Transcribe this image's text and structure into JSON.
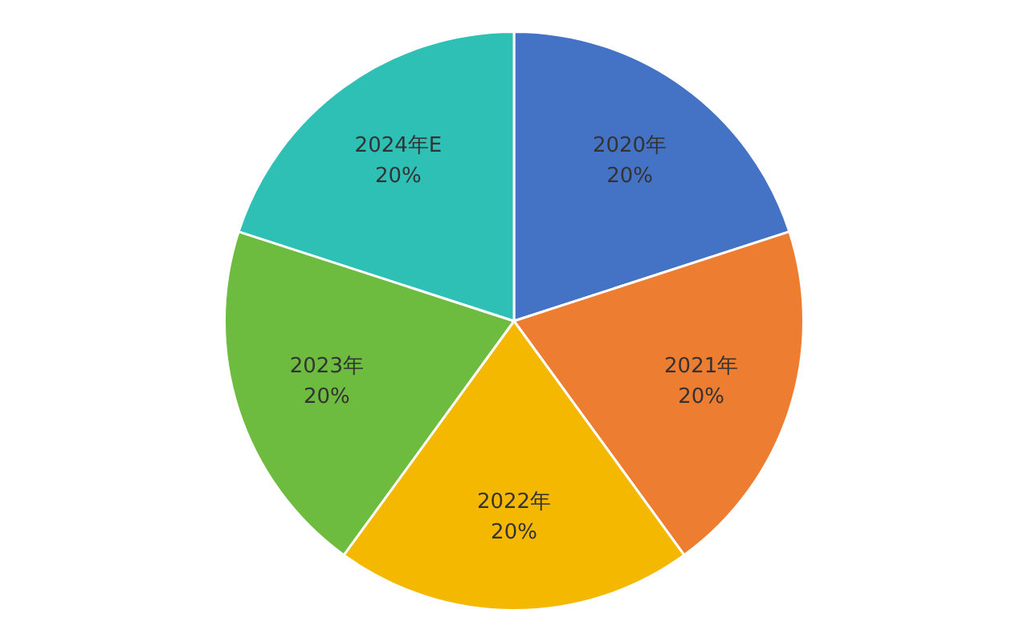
{
  "chart_data": {
    "type": "pie",
    "categories": [
      "2020年",
      "2021年",
      "2022年",
      "2023年",
      "2024年E"
    ],
    "values": [
      20,
      20,
      20,
      20,
      20
    ],
    "colors": [
      "#4472c4",
      "#ed7d31",
      "#f5b800",
      "#6dbb3f",
      "#2ebfb5"
    ],
    "value_labels": [
      "20%",
      "20%",
      "20%",
      "20%",
      "20%"
    ],
    "legend": false
  }
}
